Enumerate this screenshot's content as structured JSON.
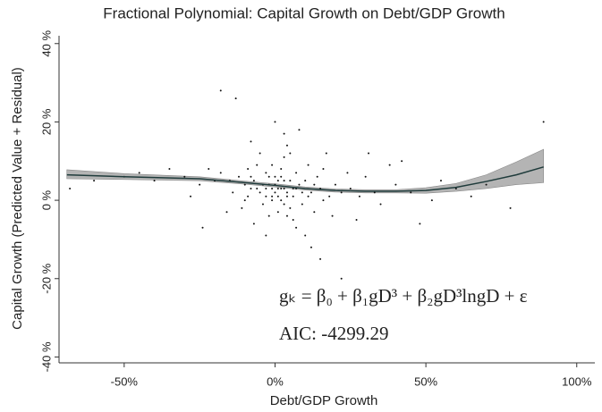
{
  "chart_data": {
    "type": "scatter",
    "title": "Fractional Polynomial: Capital Growth on Debt/GDP Growth",
    "x_label": "Debt/GDP Growth",
    "y_label": "Capital Growth (Predicted Value + Residual)",
    "annotations": [
      "gₖ = β₀ + β₁gD³ + β₂gD³lngD + ε",
      "AIC: -4299.29"
    ],
    "xlim": [
      -71,
      106
    ],
    "ylim": [
      -41.5,
      42
    ],
    "xticks": [
      {
        "value": -50,
        "label": "-50%"
      },
      {
        "value": 0,
        "label": "0%"
      },
      {
        "value": 50,
        "label": "50%"
      },
      {
        "value": 100,
        "label": "100%"
      }
    ],
    "yticks": [
      {
        "value": -40,
        "label": "-40 %"
      },
      {
        "value": -20,
        "label": "-20 %"
      },
      {
        "value": 0,
        "label": "0 %"
      },
      {
        "value": 20,
        "label": "20 %"
      },
      {
        "value": 40,
        "label": "40 %"
      }
    ],
    "points": {
      "color": "#111111",
      "x": [
        -2,
        1,
        3,
        -5,
        4,
        0,
        -1,
        2,
        6,
        -3,
        8,
        -8,
        5,
        10,
        -6,
        12,
        -10,
        1,
        7,
        -4,
        15,
        -12,
        3,
        -2,
        9,
        -7,
        14,
        0,
        2,
        -1,
        5,
        -15,
        18,
        11,
        -9,
        6,
        20,
        -18,
        4,
        -3,
        13,
        22,
        -14,
        16,
        -20,
        25,
        7,
        -5,
        28,
        -25,
        30,
        -11,
        19,
        3,
        -7,
        24,
        -22,
        33,
        10,
        -30,
        35,
        17,
        -16,
        40,
        -35,
        0,
        -8,
        12,
        45,
        -40,
        27,
        38,
        -28,
        52,
        -45,
        55,
        60,
        48,
        -50,
        65,
        -18,
        -13,
        22,
        78,
        89,
        -60,
        -68,
        70,
        42,
        -3,
        8,
        -24,
        31,
        15,
        2,
        -1,
        1,
        4,
        -2,
        3,
        -4,
        6,
        0,
        2,
        -3,
        5,
        -6,
        9,
        1,
        -1,
        3,
        7,
        -8,
        11,
        4,
        -10,
        13,
        -9,
        16
      ],
      "y": [
        4,
        3,
        5,
        2,
        1,
        6,
        0,
        8,
        3,
        7,
        4,
        3,
        -2,
        5,
        9,
        2,
        4,
        -3,
        7,
        -1,
        3,
        6,
        11,
        -4,
        -1,
        5,
        6,
        2,
        0,
        9,
        12,
        5,
        1,
        9,
        1,
        -5,
        4,
        7,
        14,
        3,
        -3,
        2,
        2,
        8,
        5,
        3,
        -7,
        12,
        1,
        4,
        6,
        -2,
        -4,
        17,
        -6,
        7,
        8,
        2,
        -9,
        6,
        -1,
        12,
        -3,
        4,
        8,
        20,
        15,
        -12,
        2,
        5,
        -5,
        9,
        1,
        0,
        7,
        5,
        3,
        -6,
        6,
        1,
        28,
        26,
        -20,
        -2,
        20,
        5,
        3,
        4,
        10,
        -9,
        18,
        -7,
        12,
        -15,
        3,
        1,
        5,
        2,
        6,
        -1,
        4,
        1,
        4,
        6,
        1,
        5,
        3,
        2,
        1,
        3,
        3,
        3,
        6,
        1,
        -4,
        0,
        4,
        8,
        0
      ]
    },
    "fit": {
      "color": "#1f3b3b",
      "band_color": "#b4b4b4",
      "x": [
        -69,
        -50,
        -25,
        -10,
        0,
        10,
        20,
        30,
        40,
        50,
        60,
        70,
        80,
        89
      ],
      "values": [
        6.5,
        6,
        5.5,
        4.5,
        3.8,
        3,
        2.5,
        2.3,
        2.3,
        2.5,
        3.3,
        4.8,
        6.5,
        8.5
      ],
      "lower": [
        5.5,
        5.3,
        5,
        4.1,
        3.4,
        2.6,
        2.1,
        1.9,
        1.9,
        1.8,
        2.3,
        3,
        4,
        4.5
      ],
      "upper": [
        7.8,
        6.8,
        6,
        4.9,
        4.2,
        3.4,
        2.9,
        2.7,
        2.7,
        3.2,
        4.3,
        6.5,
        9.8,
        13
      ]
    }
  }
}
